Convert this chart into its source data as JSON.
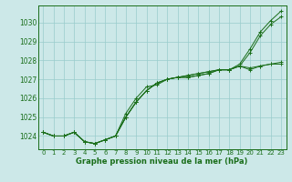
{
  "x": [
    0,
    1,
    2,
    3,
    4,
    5,
    6,
    7,
    8,
    9,
    10,
    11,
    12,
    13,
    14,
    15,
    16,
    17,
    18,
    19,
    20,
    21,
    22,
    23
  ],
  "line1": [
    1024.2,
    1024.0,
    1024.0,
    1024.2,
    1023.7,
    1023.6,
    1023.8,
    1024.0,
    1025.2,
    1026.0,
    1026.6,
    1026.7,
    1027.0,
    1027.1,
    1027.1,
    1027.2,
    1027.3,
    1027.5,
    1027.5,
    1027.7,
    1028.4,
    1029.3,
    1029.9,
    1030.3
  ],
  "line2": [
    1024.2,
    1024.0,
    1024.0,
    1024.2,
    1023.7,
    1023.6,
    1023.8,
    1024.0,
    1025.0,
    1025.8,
    1026.4,
    1026.8,
    1027.0,
    1027.1,
    1027.1,
    1027.2,
    1027.3,
    1027.5,
    1027.5,
    1027.7,
    1027.5,
    1027.7,
    1027.8,
    1027.8
  ],
  "line3": [
    1024.2,
    1024.0,
    1024.0,
    1024.2,
    1023.7,
    1023.6,
    1023.8,
    1024.0,
    1025.0,
    1025.8,
    1026.4,
    1026.8,
    1027.0,
    1027.1,
    1027.2,
    1027.3,
    1027.4,
    1027.5,
    1027.5,
    1027.7,
    1027.6,
    1027.7,
    1027.8,
    1027.9
  ],
  "line4": [
    1024.2,
    1024.0,
    1024.0,
    1024.2,
    1023.7,
    1023.6,
    1023.8,
    1024.0,
    1025.0,
    1025.8,
    1026.4,
    1026.8,
    1027.0,
    1027.1,
    1027.2,
    1027.3,
    1027.4,
    1027.5,
    1027.5,
    1027.8,
    1028.6,
    1029.5,
    1030.1,
    1030.6
  ],
  "bg_color": "#cce8e8",
  "grid_color": "#99cccc",
  "line_color": "#1a6e1a",
  "xlabel": "Graphe pression niveau de la mer (hPa)",
  "ylim": [
    1023.3,
    1030.9
  ],
  "yticks": [
    1024,
    1025,
    1026,
    1027,
    1028,
    1029,
    1030
  ],
  "xticks": [
    0,
    1,
    2,
    3,
    4,
    5,
    6,
    7,
    8,
    9,
    10,
    11,
    12,
    13,
    14,
    15,
    16,
    17,
    18,
    19,
    20,
    21,
    22,
    23
  ]
}
